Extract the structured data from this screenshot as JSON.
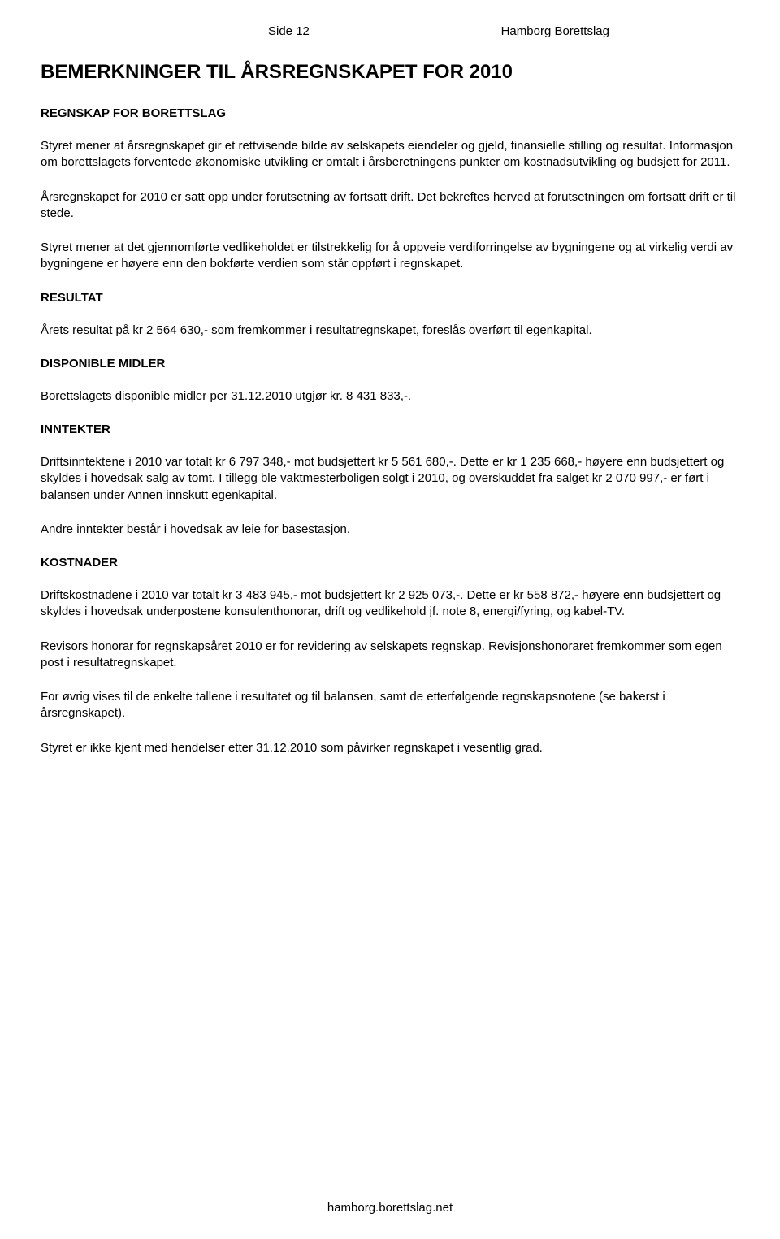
{
  "header": {
    "page_label": "Side 12",
    "org_name": "Hamborg Borettslag"
  },
  "title": "BEMERKNINGER TIL ÅRSREGNSKAPET FOR 2010",
  "sections": {
    "regnskap": {
      "heading": "REGNSKAP FOR BORETTSLAG",
      "p1": "Styret mener at årsregnskapet gir et rettvisende bilde av selskapets eiendeler og gjeld, finansielle stilling og resultat. Informasjon om borettslagets forventede økonomiske utvikling er omtalt i årsberetningens punkter om kostnadsutvikling og budsjett for 2011.",
      "p2": "Årsregnskapet for 2010 er satt opp under forutsetning av fortsatt drift. Det bekreftes herved at forutsetningen om fortsatt drift er til stede.",
      "p3": "Styret mener at det gjennomførte vedlikeholdet er tilstrekkelig for å oppveie verdiforringelse av bygningene og at virkelig verdi av bygningene er høyere enn den bokførte verdien som står oppført i regnskapet."
    },
    "resultat": {
      "heading": "RESULTAT",
      "p1": "Årets resultat på kr 2 564 630,- som fremkommer i resultatregnskapet, foreslås overført til egenkapital."
    },
    "disponible": {
      "heading": "DISPONIBLE MIDLER",
      "p1": "Borettslagets disponible midler per 31.12.2010 utgjør kr. 8 431 833,-."
    },
    "inntekter": {
      "heading": "INNTEKTER",
      "p1": "Driftsinntektene i 2010 var totalt kr 6 797 348,- mot budsjettert kr 5 561 680,-. Dette er kr 1 235 668,- høyere enn budsjettert og skyldes i hovedsak salg av tomt. I tillegg ble vaktmesterboligen solgt i 2010, og overskuddet fra salget kr 2 070 997,- er ført i balansen under Annen innskutt egenkapital.",
      "p2": "Andre inntekter består i hovedsak av leie for basestasjon."
    },
    "kostnader": {
      "heading": "KOSTNADER",
      "p1": "Driftskostnadene i 2010 var totalt kr 3 483 945,- mot budsjettert kr 2 925 073,-. Dette er kr 558 872,- høyere enn budsjettert og skyldes i hovedsak underpostene konsulenthonorar, drift og vedlikehold jf. note 8, energi/fyring, og kabel-TV.",
      "p2": "Revisors honorar for regnskapsåret 2010 er for revidering av selskapets regnskap. Revisjonshonoraret fremkommer som egen post i resultatregnskapet.",
      "p3": "For øvrig vises til de enkelte tallene i resultatet og til balansen, samt de etterfølgende regnskapsnotene (se bakerst i årsregnskapet).",
      "p4": "Styret er ikke kjent med hendelser etter 31.12.2010 som påvirker regnskapet i vesentlig grad."
    }
  },
  "footer": {
    "url": "hamborg.borettslag.net"
  }
}
